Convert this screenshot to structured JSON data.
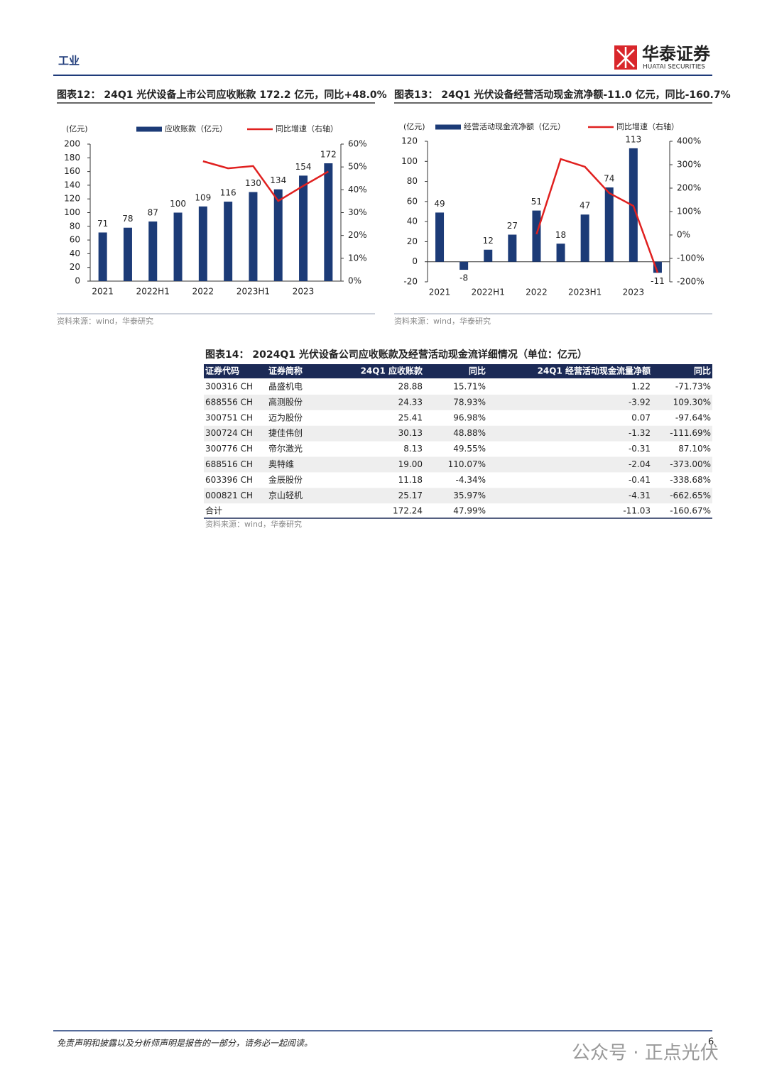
{
  "header": {
    "section": "工业",
    "brand": "华泰证券",
    "brand_en": "HUATAI SECURITIES"
  },
  "chart_data": [
    {
      "type": "bar_line",
      "title": "图表12：  24Q1 光伏设备上市公司应收账款 172.2 亿元，同比+48.0%",
      "y_label": "(亿元)",
      "categories": [
        "2021",
        null,
        "2022H1",
        null,
        "2022",
        null,
        "2023H1",
        null,
        "2023",
        null
      ],
      "series": [
        {
          "name": "应收账款（亿元）",
          "color": "#1c3b77",
          "values": [
            71,
            78,
            87,
            100,
            109,
            116,
            130,
            134,
            154,
            172
          ]
        },
        {
          "name": "同比增速（右轴）",
          "color": "#e0201f",
          "axis": "y2",
          "values": [
            null,
            null,
            null,
            null,
            52.5,
            49.4,
            50.4,
            35.1,
            41.7,
            48.0
          ]
        }
      ],
      "ylim": [
        0,
        200
      ],
      "yticks": [
        0,
        20,
        40,
        60,
        80,
        100,
        120,
        140,
        160,
        180,
        200
      ],
      "y2lim": [
        0,
        60
      ],
      "y2ticks": [
        {
          "value": 0,
          "label": "0%"
        },
        {
          "value": 10,
          "label": "10%"
        },
        {
          "value": 20,
          "label": "20%"
        },
        {
          "value": 30,
          "label": "30%"
        },
        {
          "value": 40,
          "label": "40%"
        },
        {
          "value": 50,
          "label": "50%"
        },
        {
          "value": 60,
          "label": "60%"
        }
      ],
      "source": "资料来源：wind，华泰研究"
    },
    {
      "type": "bar_line",
      "title": "图表13：  24Q1 光伏设备经营活动现金流净额-11.0 亿元，同比-160.7%",
      "y_label": "(亿元)",
      "categories": [
        "2021",
        null,
        "2022H1",
        null,
        "2022",
        null,
        "2023H1",
        null,
        "2023",
        null
      ],
      "series": [
        {
          "name": "经营活动现金流净额（亿元）",
          "color": "#1c3b77",
          "values": [
            49,
            -8,
            12,
            27,
            51,
            18,
            47,
            74,
            113,
            -11
          ]
        },
        {
          "name": "同比增速（右轴）",
          "color": "#e0201f",
          "axis": "y2",
          "values": [
            null,
            null,
            null,
            null,
            3,
            324,
            291,
            179,
            124,
            -160.7
          ]
        }
      ],
      "ylim": [
        -20,
        120
      ],
      "yticks": [
        -20,
        0,
        20,
        40,
        60,
        80,
        100,
        120
      ],
      "y2lim": [
        -200,
        400
      ],
      "y2ticks": [
        {
          "value": -200,
          "label": "-200%"
        },
        {
          "value": -100,
          "label": "-100%"
        },
        {
          "value": 0,
          "label": "0%"
        },
        {
          "value": 100,
          "label": "100%"
        },
        {
          "value": 200,
          "label": "200%"
        },
        {
          "value": 300,
          "label": "300%"
        },
        {
          "value": 400,
          "label": "400%"
        }
      ],
      "source": "资料来源：wind，华泰研究"
    }
  ],
  "table": {
    "title": "图表14：  2024Q1 光伏设备公司应收账款及经营活动现金流详细情况（单位：亿元）",
    "columns": [
      "证券代码",
      "证券简称",
      "24Q1 应收账款",
      "同比",
      "24Q1 经营活动现金流量净额",
      "同比"
    ],
    "rows": [
      [
        "300316 CH",
        "晶盛机电",
        "28.88",
        "15.71%",
        "1.22",
        "-71.73%"
      ],
      [
        "688556 CH",
        "高测股份",
        "24.33",
        "78.93%",
        "-3.92",
        "109.30%"
      ],
      [
        "300751 CH",
        "迈为股份",
        "25.41",
        "96.98%",
        "0.07",
        "-97.64%"
      ],
      [
        "300724 CH",
        "捷佳伟创",
        "30.13",
        "48.88%",
        "-1.32",
        "-111.69%"
      ],
      [
        "300776 CH",
        "帝尔激光",
        "8.13",
        "49.55%",
        "-0.31",
        "87.10%"
      ],
      [
        "688516 CH",
        "奥特维",
        "19.00",
        "110.07%",
        "-2.04",
        "-373.00%"
      ],
      [
        "603396 CH",
        "金辰股份",
        "11.18",
        "-4.34%",
        "-0.41",
        "-338.68%"
      ],
      [
        "000821 CH",
        "京山轻机",
        "25.17",
        "35.97%",
        "-4.31",
        "-662.65%"
      ],
      [
        "合计",
        "",
        "172.24",
        "47.99%",
        "-11.03",
        "-160.67%"
      ]
    ],
    "source": "资料来源：wind，华泰研究"
  },
  "footer": {
    "disclaimer": "免责声明和披露以及分析师声明是报告的一部分，请务必一起阅读。",
    "page": "6",
    "watermark": "公众号 · 正点光伏"
  }
}
